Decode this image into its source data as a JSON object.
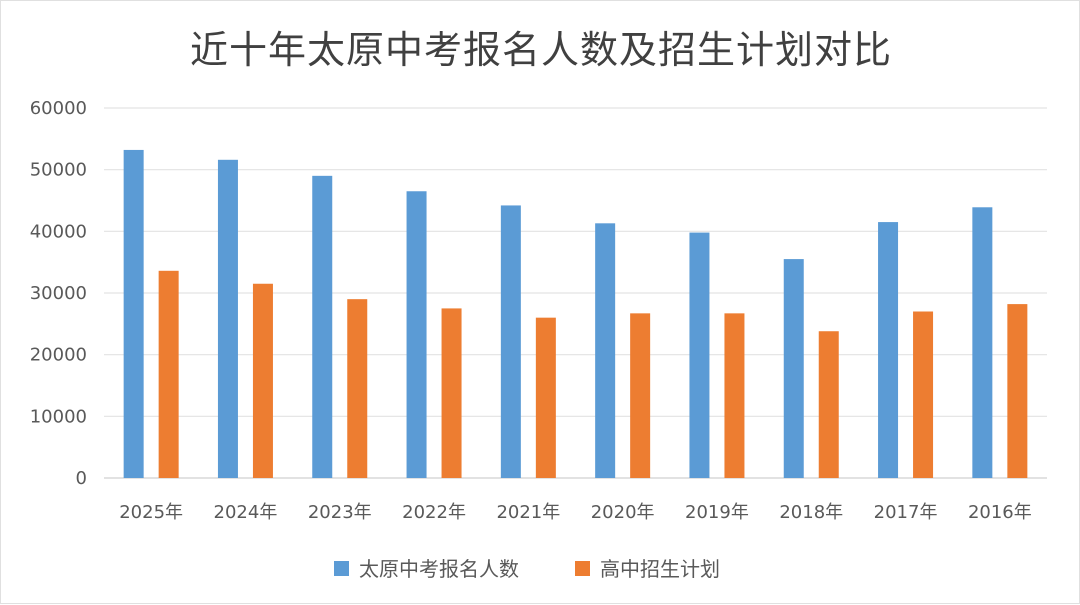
{
  "chart_data": {
    "type": "bar",
    "title": "近十年太原中考报名人数及招生计划对比",
    "xlabel": "",
    "ylabel": "",
    "ylim": [
      0,
      60000
    ],
    "yticks": [
      0,
      10000,
      20000,
      30000,
      40000,
      50000,
      60000
    ],
    "ytick_labels": [
      "0",
      "10000",
      "20000",
      "30000",
      "40000",
      "50000",
      "60000"
    ],
    "grid": true,
    "legend_position": "bottom",
    "categories": [
      "2025年",
      "2024年",
      "2023年",
      "2022年",
      "2021年",
      "2020年",
      "2019年",
      "2018年",
      "2017年",
      "2016年"
    ],
    "series": [
      {
        "name": "太原中考报名人数",
        "color": "#5b9bd5",
        "values": [
          53200,
          51600,
          49000,
          46500,
          44200,
          41300,
          39800,
          35500,
          41500,
          43900
        ]
      },
      {
        "name": "高中招生计划",
        "color": "#ed7d31",
        "values": [
          33600,
          31500,
          29000,
          27500,
          26000,
          26700,
          26700,
          23800,
          27000,
          28200
        ]
      }
    ]
  }
}
